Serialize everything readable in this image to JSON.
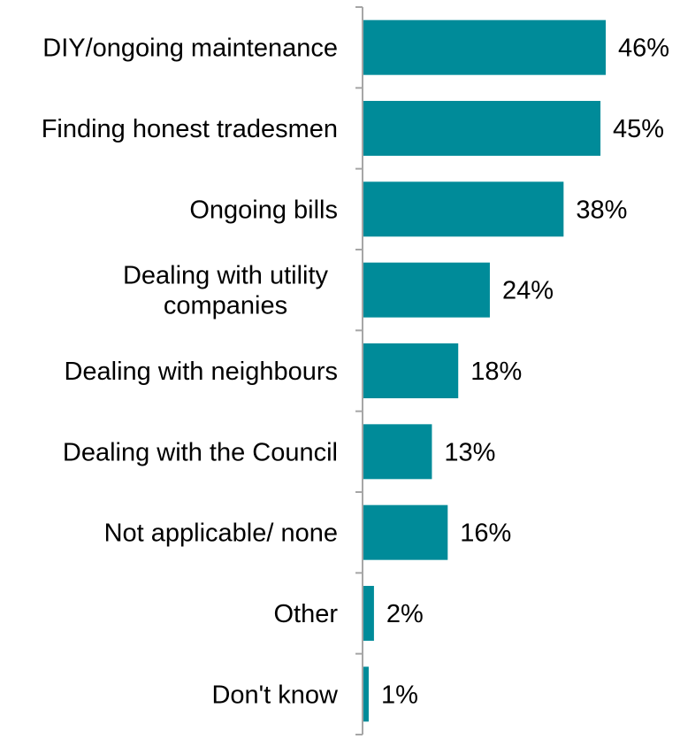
{
  "chart_data": {
    "type": "bar",
    "orientation": "horizontal",
    "categories": [
      "DIY/ongoing maintenance",
      "Finding honest tradesmen",
      "Ongoing bills",
      "Dealing with utility companies",
      "Dealing with neighbours",
      "Dealing with the Council",
      "Not applicable/ none",
      "Other",
      "Don't know"
    ],
    "category_lines": [
      [
        "DIY/ongoing maintenance"
      ],
      [
        "Finding honest tradesmen"
      ],
      [
        "Ongoing bills"
      ],
      [
        "Dealing with utility",
        "companies"
      ],
      [
        "Dealing with neighbours"
      ],
      [
        "Dealing with the Council"
      ],
      [
        "Not applicable/ none"
      ],
      [
        "Other"
      ],
      [
        "Don't know"
      ]
    ],
    "values": [
      46,
      45,
      38,
      24,
      18,
      13,
      16,
      2,
      1
    ],
    "value_labels": [
      "46%",
      "45%",
      "38%",
      "24%",
      "18%",
      "13%",
      "16%",
      "2%",
      "1%"
    ],
    "unit": "%",
    "xlim": [
      0,
      60
    ],
    "title": "",
    "xlabel": "",
    "ylabel": "",
    "grid": false,
    "legend": "none",
    "bar_color": "#008B99",
    "axis_color": "#A6A6A6"
  }
}
